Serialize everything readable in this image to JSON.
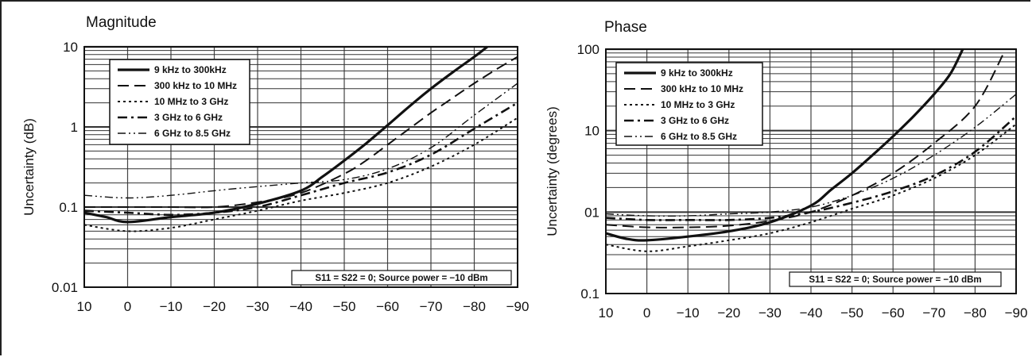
{
  "chart_data": [
    {
      "type": "line",
      "title": "Magnitude",
      "xlabel": "",
      "ylabel": "Uncertainty (dB)",
      "yscale": "log",
      "xlim": [
        10,
        -90
      ],
      "ylim": [
        0.01,
        10
      ],
      "x_ticks": [
        "10",
        "0",
        "−10",
        "−20",
        "−30",
        "−40",
        "−50",
        "−60",
        "−70",
        "−80",
        "−90"
      ],
      "y_ticks": [
        "0.01",
        "0.1",
        "1",
        "10"
      ],
      "legend_position": "top-left",
      "annotation": "S11 = S22 = 0; Source power = −10 dBm",
      "series": [
        {
          "name": "9 kHz to 300kHz",
          "style": "solid",
          "x": [
            10,
            5,
            0,
            -10,
            -20,
            -30,
            -40,
            -45,
            -50,
            -55,
            -60,
            -65,
            -70,
            -75,
            -80,
            -83
          ],
          "y": [
            0.085,
            0.075,
            0.065,
            0.075,
            0.085,
            0.11,
            0.16,
            0.24,
            0.38,
            0.62,
            1.05,
            1.8,
            3.0,
            4.8,
            7.5,
            10
          ]
        },
        {
          "name": "300 kHz to 10 MHz",
          "style": "dash",
          "x": [
            10,
            0,
            -10,
            -20,
            -30,
            -40,
            -50,
            -55,
            -60,
            -65,
            -70,
            -75,
            -80,
            -85,
            -90
          ],
          "y": [
            0.1,
            0.1,
            0.1,
            0.1,
            0.115,
            0.15,
            0.26,
            0.38,
            0.6,
            0.95,
            1.5,
            2.3,
            3.5,
            5.2,
            7.5
          ]
        },
        {
          "name": "10 MHz to 3 GHz",
          "style": "dot",
          "x": [
            10,
            0,
            -10,
            -20,
            -30,
            -40,
            -50,
            -60,
            -70,
            -80,
            -90
          ],
          "y": [
            0.06,
            0.05,
            0.055,
            0.07,
            0.09,
            0.12,
            0.15,
            0.2,
            0.32,
            0.6,
            1.3
          ]
        },
        {
          "name": "3 GHz to 6 GHz",
          "style": "dashdot",
          "x": [
            10,
            0,
            -10,
            -20,
            -30,
            -40,
            -50,
            -60,
            -70,
            -80,
            -90
          ],
          "y": [
            0.09,
            0.085,
            0.08,
            0.085,
            0.1,
            0.14,
            0.2,
            0.27,
            0.45,
            0.95,
            2.0
          ]
        },
        {
          "name": "6 GHz to 8.5 GHz",
          "style": "dashdotdot",
          "x": [
            10,
            0,
            -10,
            -20,
            -30,
            -40,
            -50,
            -60,
            -70,
            -80,
            -90
          ],
          "y": [
            0.14,
            0.13,
            0.14,
            0.16,
            0.18,
            0.2,
            0.22,
            0.3,
            0.55,
            1.4,
            3.5
          ]
        }
      ]
    },
    {
      "type": "line",
      "title": "Phase",
      "xlabel": "",
      "ylabel": "Uncertainty (degrees)",
      "yscale": "log",
      "xlim": [
        10,
        -90
      ],
      "ylim": [
        0.1,
        100
      ],
      "x_ticks": [
        "10",
        "0",
        "−10",
        "−20",
        "−30",
        "−40",
        "−50",
        "−60",
        "−70",
        "−80",
        "−90"
      ],
      "y_ticks": [
        "0.1",
        "01",
        "10",
        "100"
      ],
      "legend_position": "top-left",
      "annotation": "S11 = S22 = 0; Source power = −10 dBm",
      "series": [
        {
          "name": "9 kHz to 300kHz",
          "style": "solid",
          "x": [
            10,
            5,
            0,
            -10,
            -20,
            -30,
            -40,
            -45,
            -50,
            -55,
            -60,
            -65,
            -70,
            -74,
            -77
          ],
          "y": [
            0.55,
            0.47,
            0.45,
            0.5,
            0.58,
            0.75,
            1.2,
            1.9,
            3.0,
            5.0,
            8.5,
            15,
            28,
            50,
            100
          ]
        },
        {
          "name": "300 kHz to 10 MHz",
          "style": "dash",
          "x": [
            10,
            0,
            -10,
            -20,
            -30,
            -40,
            -50,
            -60,
            -70,
            -80,
            -87
          ],
          "y": [
            0.7,
            0.65,
            0.65,
            0.68,
            0.78,
            1.0,
            1.6,
            3.0,
            7.0,
            20,
            90
          ]
        },
        {
          "name": "10 MHz to 3 GHz",
          "style": "dot",
          "x": [
            10,
            0,
            -10,
            -20,
            -30,
            -40,
            -50,
            -60,
            -70,
            -80,
            -90
          ],
          "y": [
            0.4,
            0.33,
            0.38,
            0.45,
            0.55,
            0.75,
            1.1,
            1.6,
            2.6,
            5.0,
            12
          ]
        },
        {
          "name": "3 GHz to 6 GHz",
          "style": "dashdot",
          "x": [
            10,
            0,
            -10,
            -20,
            -30,
            -40,
            -50,
            -60,
            -70,
            -80,
            -90
          ],
          "y": [
            0.85,
            0.8,
            0.8,
            0.8,
            0.85,
            1.0,
            1.3,
            1.8,
            2.8,
            5.5,
            15
          ]
        },
        {
          "name": "6 GHz to 8.5 GHz",
          "style": "dashdotdot",
          "x": [
            10,
            0,
            -10,
            -20,
            -30,
            -40,
            -50,
            -60,
            -70,
            -80,
            -90
          ],
          "y": [
            0.95,
            0.9,
            0.9,
            0.95,
            1.0,
            1.15,
            1.6,
            2.6,
            5.0,
            11,
            28
          ]
        }
      ]
    }
  ]
}
